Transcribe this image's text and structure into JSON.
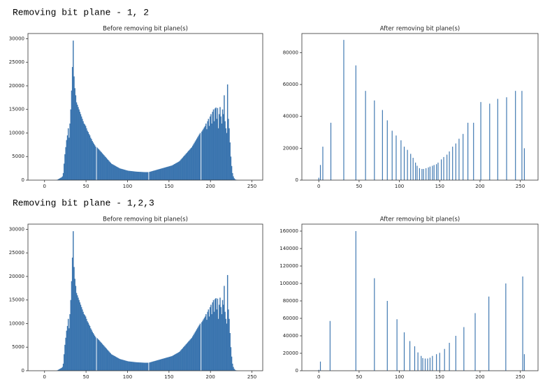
{
  "headings": [
    "Removing bit plane - 1, 2",
    "Removing bit plane - 1,2,3"
  ],
  "chart_data": [
    {
      "type": "histogram",
      "title": "Before removing bit plane(s)",
      "color": "#3b75af",
      "bins": [
        0,
        1,
        2,
        3,
        4,
        5,
        6,
        7,
        8,
        9,
        10,
        11,
        12,
        13,
        14,
        15,
        16,
        17,
        18,
        19,
        20,
        21,
        22,
        23,
        24,
        25,
        26,
        27,
        28,
        29,
        30,
        31,
        32,
        33,
        34,
        35,
        36,
        37,
        38,
        39,
        40,
        41,
        42,
        43,
        44,
        45,
        46,
        47,
        48,
        49,
        50,
        51,
        52,
        53,
        54,
        55,
        56,
        57,
        58,
        59,
        60,
        61,
        62,
        63,
        64,
        65,
        66,
        67,
        68,
        69,
        70,
        71,
        72,
        73,
        74,
        75,
        76,
        77,
        78,
        79,
        80,
        81,
        82,
        83,
        84,
        85,
        86,
        87,
        88,
        89,
        90,
        91,
        92,
        93,
        94,
        95,
        96,
        97,
        98,
        99,
        100,
        101,
        102,
        103,
        104,
        105,
        106,
        107,
        108,
        109,
        110,
        111,
        112,
        113,
        114,
        115,
        116,
        117,
        118,
        119,
        120,
        121,
        122,
        123,
        124,
        125,
        126,
        127,
        128,
        129,
        130,
        131,
        132,
        133,
        134,
        135,
        136,
        137,
        138,
        139,
        140,
        141,
        142,
        143,
        144,
        145,
        146,
        147,
        148,
        149,
        150,
        151,
        152,
        153,
        154,
        155,
        156,
        157,
        158,
        159,
        160,
        161,
        162,
        163,
        164,
        165,
        166,
        167,
        168,
        169,
        170,
        171,
        172,
        173,
        174,
        175,
        176,
        177,
        178,
        179,
        180,
        181,
        182,
        183,
        184,
        185,
        186,
        187,
        188,
        189,
        190,
        191,
        192,
        193,
        194,
        195,
        196,
        197,
        198,
        199,
        200,
        201,
        202,
        203,
        204,
        205,
        206,
        207,
        208,
        209,
        210,
        211,
        212,
        213,
        214,
        215,
        216,
        217,
        218,
        219,
        220,
        221,
        222,
        223,
        224,
        225,
        226,
        227,
        228,
        229,
        230,
        231,
        232,
        233,
        234,
        235,
        236,
        237,
        238,
        239,
        240,
        241,
        242,
        243,
        244,
        245,
        246,
        247,
        248,
        249,
        250,
        251,
        252,
        253,
        254,
        255,
        256
      ],
      "values": [
        0,
        0,
        0,
        0,
        0,
        0,
        0,
        0,
        0,
        0,
        0,
        0,
        0,
        0,
        0,
        100,
        200,
        300,
        400,
        500,
        600,
        800,
        1500,
        3500,
        5500,
        7000,
        8500,
        9500,
        11000,
        9000,
        12000,
        15000,
        19000,
        24000,
        29600,
        22000,
        19500,
        18000,
        16500,
        16000,
        15500,
        15000,
        14500,
        14000,
        13500,
        13000,
        12500,
        12000,
        11800,
        11500,
        11000,
        10500,
        10200,
        9800,
        9500,
        9000,
        8700,
        8300,
        8000,
        7700,
        7400,
        7100,
        0,
        6900,
        6700,
        6500,
        6300,
        6100,
        5900,
        5700,
        5500,
        5300,
        5100,
        4900,
        4700,
        4500,
        4300,
        4100,
        3900,
        3700,
        3500,
        3400,
        3300,
        3200,
        3100,
        3000,
        2900,
        2800,
        2700,
        2600,
        2500,
        2450,
        2400,
        2350,
        2300,
        2250,
        2200,
        2150,
        2100,
        2050,
        2000,
        1980,
        1960,
        1940,
        1920,
        1900,
        1880,
        1860,
        1840,
        1820,
        1800,
        1790,
        1780,
        1770,
        1760,
        1750,
        1740,
        1730,
        1720,
        1710,
        1700,
        1700,
        1700,
        1700,
        1700,
        0,
        1750,
        1800,
        1850,
        1900,
        1950,
        2000,
        2050,
        2100,
        2150,
        2200,
        2250,
        2300,
        2350,
        2400,
        2450,
        2500,
        2550,
        2600,
        2650,
        2700,
        2750,
        2800,
        2850,
        2900,
        2950,
        3000,
        3050,
        3100,
        3200,
        3300,
        3400,
        3500,
        3600,
        3700,
        3800,
        3900,
        4000,
        4200,
        4400,
        4600,
        4800,
        5000,
        5200,
        5400,
        5600,
        5800,
        6000,
        6200,
        6400,
        6600,
        6800,
        7000,
        7300,
        7600,
        7900,
        8200,
        8500,
        8800,
        9100,
        9400,
        9700,
        10000,
        0,
        10300,
        10600,
        10900,
        11200,
        11500,
        12000,
        10800,
        12500,
        13000,
        11500,
        13500,
        14000,
        12000,
        14500,
        15000,
        12500,
        15200,
        15400,
        13000,
        15300,
        11000,
        14000,
        15500,
        13500,
        12000,
        15000,
        14000,
        18000,
        12500,
        11000,
        10000,
        20300,
        13000,
        11000,
        8000,
        5000,
        3000,
        1500,
        800,
        400,
        200,
        100,
        50,
        20,
        0,
        0,
        0,
        0,
        0,
        0,
        0,
        0,
        0,
        0,
        0,
        0,
        0,
        0,
        0,
        0,
        0,
        0,
        0,
        0,
        0,
        0,
        0,
        0
      ],
      "xlim": [
        -20,
        263
      ],
      "ylim": [
        0,
        31100
      ],
      "xticks": [
        0,
        50,
        100,
        150,
        200,
        250
      ],
      "yticks": [
        0,
        5000,
        10000,
        15000,
        20000,
        25000,
        30000
      ]
    },
    {
      "type": "bar",
      "title": "After removing bit plane(s)",
      "color": "#3b75af",
      "x": [
        0,
        2,
        5,
        15,
        31,
        46,
        58,
        69,
        79,
        85,
        91,
        96,
        102,
        106,
        110,
        114,
        117,
        120,
        122,
        125,
        128,
        130,
        133,
        136,
        138,
        141,
        143,
        146,
        148,
        152,
        155,
        159,
        162,
        166,
        170,
        174,
        179,
        185,
        192,
        201,
        212,
        222,
        233,
        244,
        252,
        255
      ],
      "values": [
        1500,
        9500,
        21000,
        36000,
        88000,
        72000,
        56000,
        50000,
        44000,
        37500,
        31000,
        28000,
        25000,
        21000,
        19000,
        16500,
        14000,
        11000,
        9000,
        7500,
        7000,
        7000,
        7500,
        8000,
        8500,
        9000,
        9500,
        10000,
        11000,
        13000,
        14500,
        16000,
        18000,
        21000,
        23000,
        26000,
        29000,
        36000,
        36000,
        49000,
        48000,
        51000,
        52000,
        56000,
        56000,
        20000
      ],
      "xlim": [
        -21,
        272
      ],
      "ylim": [
        0,
        92000
      ],
      "xticks": [
        0,
        50,
        100,
        150,
        200,
        250
      ],
      "yticks": [
        0,
        20000,
        40000,
        60000,
        80000
      ]
    },
    {
      "type": "histogram",
      "title": "Before removing bit plane(s)",
      "color": "#3b75af",
      "bins": [
        0,
        1,
        2,
        3,
        4,
        5,
        6,
        7,
        8,
        9,
        10,
        11,
        12,
        13,
        14,
        15,
        16,
        17,
        18,
        19,
        20,
        21,
        22,
        23,
        24,
        25,
        26,
        27,
        28,
        29,
        30,
        31,
        32,
        33,
        34,
        35,
        36,
        37,
        38,
        39,
        40,
        41,
        42,
        43,
        44,
        45,
        46,
        47,
        48,
        49,
        50,
        51,
        52,
        53,
        54,
        55,
        56,
        57,
        58,
        59,
        60,
        61,
        62,
        63,
        64,
        65,
        66,
        67,
        68,
        69,
        70,
        71,
        72,
        73,
        74,
        75,
        76,
        77,
        78,
        79,
        80,
        81,
        82,
        83,
        84,
        85,
        86,
        87,
        88,
        89,
        90,
        91,
        92,
        93,
        94,
        95,
        96,
        97,
        98,
        99,
        100,
        101,
        102,
        103,
        104,
        105,
        106,
        107,
        108,
        109,
        110,
        111,
        112,
        113,
        114,
        115,
        116,
        117,
        118,
        119,
        120,
        121,
        122,
        123,
        124,
        125,
        126,
        127,
        128,
        129,
        130,
        131,
        132,
        133,
        134,
        135,
        136,
        137,
        138,
        139,
        140,
        141,
        142,
        143,
        144,
        145,
        146,
        147,
        148,
        149,
        150,
        151,
        152,
        153,
        154,
        155,
        156,
        157,
        158,
        159,
        160,
        161,
        162,
        163,
        164,
        165,
        166,
        167,
        168,
        169,
        170,
        171,
        172,
        173,
        174,
        175,
        176,
        177,
        178,
        179,
        180,
        181,
        182,
        183,
        184,
        185,
        186,
        187,
        188,
        189,
        190,
        191,
        192,
        193,
        194,
        195,
        196,
        197,
        198,
        199,
        200,
        201,
        202,
        203,
        204,
        205,
        206,
        207,
        208,
        209,
        210,
        211,
        212,
        213,
        214,
        215,
        216,
        217,
        218,
        219,
        220,
        221,
        222,
        223,
        224,
        225,
        226,
        227,
        228,
        229,
        230,
        231,
        232,
        233,
        234,
        235,
        236,
        237,
        238,
        239,
        240,
        241,
        242,
        243,
        244,
        245,
        246,
        247,
        248,
        249,
        250,
        251,
        252,
        253,
        254,
        255,
        256
      ],
      "values": [
        0,
        0,
        0,
        0,
        0,
        0,
        0,
        0,
        0,
        0,
        0,
        0,
        0,
        0,
        0,
        100,
        200,
        300,
        400,
        500,
        600,
        800,
        1500,
        3500,
        5500,
        7000,
        8500,
        9500,
        11000,
        9000,
        12000,
        15000,
        19000,
        24000,
        29600,
        22000,
        19500,
        18000,
        16500,
        16000,
        15500,
        15000,
        14500,
        14000,
        13500,
        13000,
        12500,
        12000,
        11800,
        11500,
        11000,
        10500,
        10200,
        9800,
        9500,
        9000,
        8700,
        8300,
        8000,
        7700,
        7400,
        7100,
        0,
        6900,
        6700,
        6500,
        6300,
        6100,
        5900,
        5700,
        5500,
        5300,
        5100,
        4900,
        4700,
        4500,
        4300,
        4100,
        3900,
        3700,
        3500,
        3400,
        3300,
        3200,
        3100,
        3000,
        2900,
        2800,
        2700,
        2600,
        2500,
        2450,
        2400,
        2350,
        2300,
        2250,
        2200,
        2150,
        2100,
        2050,
        2000,
        1980,
        1960,
        1940,
        1920,
        1900,
        1880,
        1860,
        1840,
        1820,
        1800,
        1790,
        1780,
        1770,
        1760,
        1750,
        1740,
        1730,
        1720,
        1710,
        1700,
        1700,
        1700,
        1700,
        1700,
        0,
        1750,
        1800,
        1850,
        1900,
        1950,
        2000,
        2050,
        2100,
        2150,
        2200,
        2250,
        2300,
        2350,
        2400,
        2450,
        2500,
        2550,
        2600,
        2650,
        2700,
        2750,
        2800,
        2850,
        2900,
        2950,
        3000,
        3050,
        3100,
        3200,
        3300,
        3400,
        3500,
        3600,
        3700,
        3800,
        3900,
        4000,
        4200,
        4400,
        4600,
        4800,
        5000,
        5200,
        5400,
        5600,
        5800,
        6000,
        6200,
        6400,
        6600,
        6800,
        7000,
        7300,
        7600,
        7900,
        8200,
        8500,
        8800,
        9100,
        9400,
        9700,
        10000,
        0,
        10300,
        10600,
        10900,
        11200,
        11500,
        12000,
        10800,
        12500,
        13000,
        11500,
        13500,
        14000,
        12000,
        14500,
        15000,
        12500,
        15200,
        15400,
        13000,
        15300,
        11000,
        14000,
        15500,
        13500,
        12000,
        15000,
        14000,
        18000,
        12500,
        11000,
        10000,
        20300,
        13000,
        11000,
        8000,
        5000,
        3000,
        1500,
        800,
        400,
        200,
        100,
        50,
        20,
        0,
        0,
        0,
        0,
        0,
        0,
        0,
        0,
        0,
        0,
        0,
        0,
        0,
        0,
        0,
        0,
        0,
        0,
        0,
        0,
        0,
        0,
        0,
        0
      ],
      "xlim": [
        -20,
        263
      ],
      "ylim": [
        0,
        31100
      ],
      "xticks": [
        0,
        50,
        100,
        150,
        200,
        250
      ],
      "yticks": [
        0,
        5000,
        10000,
        15000,
        20000,
        25000,
        30000
      ]
    },
    {
      "type": "bar",
      "title": "After removing bit plane(s)",
      "color": "#3b75af",
      "x": [
        0,
        2,
        14,
        46,
        69,
        85,
        97,
        106,
        113,
        119,
        123,
        127,
        129,
        132,
        135,
        138,
        141,
        146,
        150,
        156,
        162,
        170,
        180,
        194,
        211,
        232,
        253,
        255
      ],
      "values": [
        1000,
        10500,
        57000,
        160000,
        106000,
        80000,
        59000,
        44000,
        34000,
        28000,
        21000,
        17000,
        14500,
        14000,
        14000,
        15000,
        17000,
        19000,
        20500,
        25000,
        32000,
        40000,
        50000,
        66000,
        85000,
        100000,
        108000,
        19000
      ],
      "xlim": [
        -21,
        272
      ],
      "ylim": [
        0,
        168000
      ],
      "xticks": [
        0,
        50,
        100,
        150,
        200,
        250
      ],
      "yticks": [
        0,
        20000,
        40000,
        60000,
        80000,
        100000,
        120000,
        140000,
        160000
      ]
    }
  ]
}
